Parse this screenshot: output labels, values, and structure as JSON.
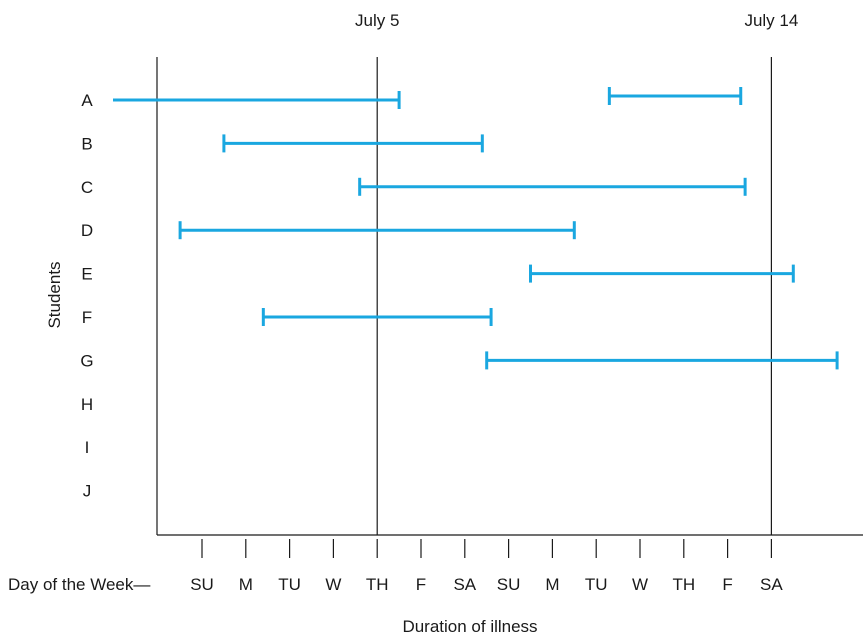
{
  "chart_data": {
    "type": "range",
    "title": "",
    "xlabel": "Duration of illness",
    "ylabel": "Students",
    "x_prefix_label": "Day of the Week—",
    "x_ticks": [
      "SU",
      "M",
      "TU",
      "W",
      "TH",
      "F",
      "SA",
      "SU",
      "M",
      "TU",
      "W",
      "TH",
      "F",
      "SA"
    ],
    "xlim": [
      -1,
      14.5
    ],
    "reference_lines": [
      {
        "label": "July 5",
        "x": 4
      },
      {
        "label": "July 14",
        "x": 13
      }
    ],
    "categories": [
      "A",
      "B",
      "C",
      "D",
      "E",
      "F",
      "G",
      "H",
      "I",
      "J"
    ],
    "intervals": [
      {
        "student": "A",
        "start": null,
        "end": 4.5,
        "start_open": true
      },
      {
        "student": "A",
        "start": 9.3,
        "end": 12.3
      },
      {
        "student": "B",
        "start": 0.5,
        "end": 6.4
      },
      {
        "student": "C",
        "start": 3.6,
        "end": 12.4
      },
      {
        "student": "D",
        "start": -0.5,
        "end": 8.5
      },
      {
        "student": "E",
        "start": 7.5,
        "end": 13.5
      },
      {
        "student": "F",
        "start": 1.4,
        "end": 6.6
      },
      {
        "student": "G",
        "start": 6.5,
        "end": 14.5
      }
    ],
    "color": "#1aa7e0"
  }
}
